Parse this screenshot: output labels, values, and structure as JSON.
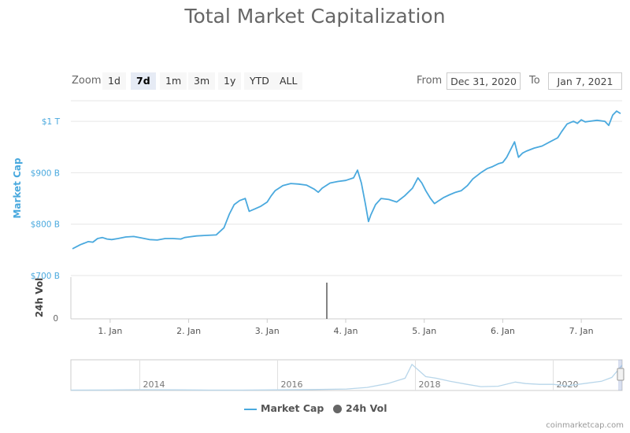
{
  "title": "Total Market Capitalization",
  "zoom": {
    "label": "Zoom",
    "buttons": [
      {
        "label": "1d",
        "active": false
      },
      {
        "label": "7d",
        "active": true
      },
      {
        "label": "1m",
        "active": false
      },
      {
        "label": "3m",
        "active": false
      },
      {
        "label": "1y",
        "active": false
      },
      {
        "label": "YTD",
        "active": false
      },
      {
        "label": "ALL",
        "active": false
      }
    ]
  },
  "range": {
    "from_label": "From",
    "from_value": "Dec 31, 2020",
    "to_label": "To",
    "to_value": "Jan 7, 2021"
  },
  "legend": {
    "market_cap": "Market Cap",
    "volume": "24h Vol"
  },
  "credit": "coinmarketcap.com",
  "colors": {
    "market_cap": "#4aa9de",
    "volume": "#333333",
    "grid": "#e6e6e6",
    "navigator": "#b8d6ea"
  },
  "chart_data": {
    "type": "line",
    "ylabel": "Market Cap",
    "ylabel2": "24h Vol",
    "y_ticks": [
      "$700 B",
      "$800 B",
      "$900 B",
      "$1 T"
    ],
    "y_tick_values": [
      700,
      800,
      900,
      1000
    ],
    "y_unit": "billion USD",
    "ylim": [
      700,
      1040
    ],
    "vol_tick": "0",
    "x_ticks": [
      "1. Jan",
      "2. Jan",
      "3. Jan",
      "4. Jan",
      "5. Jan",
      "6. Jan",
      "7. Jan"
    ],
    "x_tick_days": [
      1,
      2,
      3,
      4,
      5,
      6,
      7
    ],
    "xlim_days": [
      0.5,
      7.52
    ],
    "series": [
      {
        "name": "Market Cap",
        "points": [
          [
            0.52,
            752
          ],
          [
            0.57,
            756
          ],
          [
            0.62,
            760
          ],
          [
            0.67,
            763
          ],
          [
            0.72,
            766
          ],
          [
            0.78,
            765
          ],
          [
            0.84,
            772
          ],
          [
            0.9,
            774
          ],
          [
            0.96,
            771
          ],
          [
            1.02,
            770
          ],
          [
            1.1,
            772
          ],
          [
            1.2,
            775
          ],
          [
            1.3,
            776
          ],
          [
            1.4,
            773
          ],
          [
            1.5,
            770
          ],
          [
            1.6,
            769
          ],
          [
            1.7,
            772
          ],
          [
            1.8,
            772
          ],
          [
            1.9,
            771
          ],
          [
            1.95,
            774
          ],
          [
            2.0,
            775
          ],
          [
            2.1,
            777
          ],
          [
            2.2,
            778
          ],
          [
            2.35,
            779
          ],
          [
            2.45,
            793
          ],
          [
            2.52,
            820
          ],
          [
            2.58,
            838
          ],
          [
            2.65,
            846
          ],
          [
            2.72,
            850
          ],
          [
            2.77,
            825
          ],
          [
            2.85,
            830
          ],
          [
            2.92,
            835
          ],
          [
            3.0,
            843
          ],
          [
            3.05,
            855
          ],
          [
            3.1,
            865
          ],
          [
            3.2,
            875
          ],
          [
            3.3,
            879
          ],
          [
            3.4,
            878
          ],
          [
            3.5,
            876
          ],
          [
            3.6,
            868
          ],
          [
            3.65,
            862
          ],
          [
            3.7,
            870
          ],
          [
            3.8,
            880
          ],
          [
            3.9,
            883
          ],
          [
            4.0,
            885
          ],
          [
            4.1,
            890
          ],
          [
            4.15,
            905
          ],
          [
            4.2,
            880
          ],
          [
            4.25,
            840
          ],
          [
            4.29,
            805
          ],
          [
            4.32,
            818
          ],
          [
            4.38,
            838
          ],
          [
            4.45,
            850
          ],
          [
            4.55,
            848
          ],
          [
            4.65,
            843
          ],
          [
            4.75,
            855
          ],
          [
            4.85,
            870
          ],
          [
            4.92,
            890
          ],
          [
            4.97,
            880
          ],
          [
            5.02,
            865
          ],
          [
            5.08,
            850
          ],
          [
            5.13,
            840
          ],
          [
            5.18,
            845
          ],
          [
            5.25,
            852
          ],
          [
            5.32,
            857
          ],
          [
            5.4,
            862
          ],
          [
            5.47,
            865
          ],
          [
            5.55,
            875
          ],
          [
            5.62,
            888
          ],
          [
            5.72,
            900
          ],
          [
            5.8,
            908
          ],
          [
            5.87,
            912
          ],
          [
            5.95,
            918
          ],
          [
            6.0,
            920
          ],
          [
            6.05,
            930
          ],
          [
            6.1,
            945
          ],
          [
            6.15,
            960
          ],
          [
            6.2,
            930
          ],
          [
            6.25,
            938
          ],
          [
            6.3,
            942
          ],
          [
            6.4,
            948
          ],
          [
            6.5,
            952
          ],
          [
            6.6,
            960
          ],
          [
            6.7,
            968
          ],
          [
            6.75,
            980
          ],
          [
            6.82,
            995
          ],
          [
            6.9,
            1000
          ],
          [
            6.95,
            996
          ],
          [
            7.0,
            1003
          ],
          [
            7.05,
            999
          ],
          [
            7.1,
            1000
          ],
          [
            7.2,
            1002
          ],
          [
            7.3,
            1000
          ],
          [
            7.35,
            992
          ],
          [
            7.4,
            1012
          ],
          [
            7.45,
            1020
          ],
          [
            7.5,
            1015
          ]
        ]
      },
      {
        "name": "24h Vol",
        "points": []
      }
    ],
    "navigator": {
      "x_ticks": [
        "2014",
        "2016",
        "2018",
        "2020"
      ],
      "points": [
        [
          2013.0,
          0.5
        ],
        [
          2013.5,
          0.6
        ],
        [
          2014.0,
          1.0
        ],
        [
          2014.5,
          0.8
        ],
        [
          2015.0,
          0.5
        ],
        [
          2015.5,
          0.5
        ],
        [
          2016.0,
          0.8
        ],
        [
          2016.5,
          1.2
        ],
        [
          2017.0,
          2.0
        ],
        [
          2017.3,
          4.0
        ],
        [
          2017.6,
          9.0
        ],
        [
          2017.85,
          16.0
        ],
        [
          2017.95,
          34.0
        ],
        [
          2018.05,
          26.0
        ],
        [
          2018.15,
          18.0
        ],
        [
          2018.3,
          16.0
        ],
        [
          2018.5,
          12.0
        ],
        [
          2018.75,
          8.0
        ],
        [
          2018.95,
          5.0
        ],
        [
          2019.2,
          5.5
        ],
        [
          2019.45,
          11.0
        ],
        [
          2019.6,
          9.0
        ],
        [
          2019.8,
          8.0
        ],
        [
          2020.0,
          8.0
        ],
        [
          2020.2,
          6.0
        ],
        [
          2020.45,
          9.0
        ],
        [
          2020.7,
          12.0
        ],
        [
          2020.85,
          17.0
        ],
        [
          2021.0,
          33.0
        ]
      ],
      "xlim": [
        2013.0,
        2021.0
      ],
      "ylim": [
        0,
        40
      ]
    }
  }
}
